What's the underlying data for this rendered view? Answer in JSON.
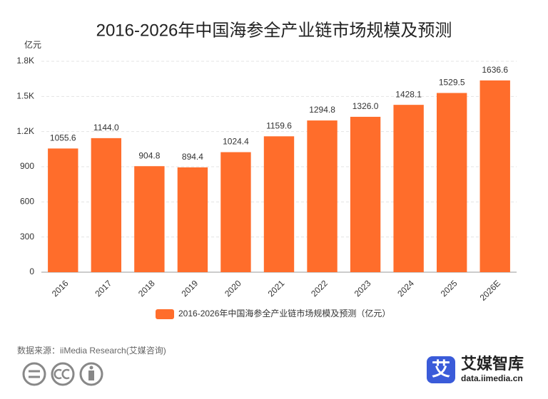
{
  "chart_data": {
    "type": "bar",
    "title": "2016-2026年中国海参全产业链市场规模及预测",
    "ylabel": "亿元",
    "categories": [
      "2016",
      "2017",
      "2018",
      "2019",
      "2020",
      "2021",
      "2022",
      "2023",
      "2024",
      "2025",
      "2026E"
    ],
    "series": [
      {
        "name": "2016-2026年中国海参全产业链市场规模及预测（亿元）",
        "color": "#ff6d2b",
        "values": [
          1055.6,
          1144.0,
          904.8,
          894.4,
          1024.4,
          1159.6,
          1294.8,
          1326.0,
          1428.1,
          1529.5,
          1636.6
        ],
        "value_labels": [
          "1055.6",
          "1144.0",
          "904.8",
          "894.4",
          "1024.4",
          "1159.6",
          "1294.8",
          "1326.0",
          "1428.1",
          "1529.5",
          "1636.6"
        ]
      }
    ],
    "ylim": [
      0,
      1800
    ],
    "yticks": [
      0,
      300,
      600,
      900,
      {
        "value": 1200,
        "label": "1.2K"
      },
      {
        "value": 1500,
        "label": "1.5K"
      },
      {
        "value": 1800,
        "label": "1.8K"
      }
    ],
    "grid": true
  },
  "footer": {
    "source": "数据来源：iiMedia Research(艾媒咨询)",
    "brand": {
      "icon": "艾",
      "name": "艾媒智库",
      "url": "data.iimedia.cn"
    }
  }
}
